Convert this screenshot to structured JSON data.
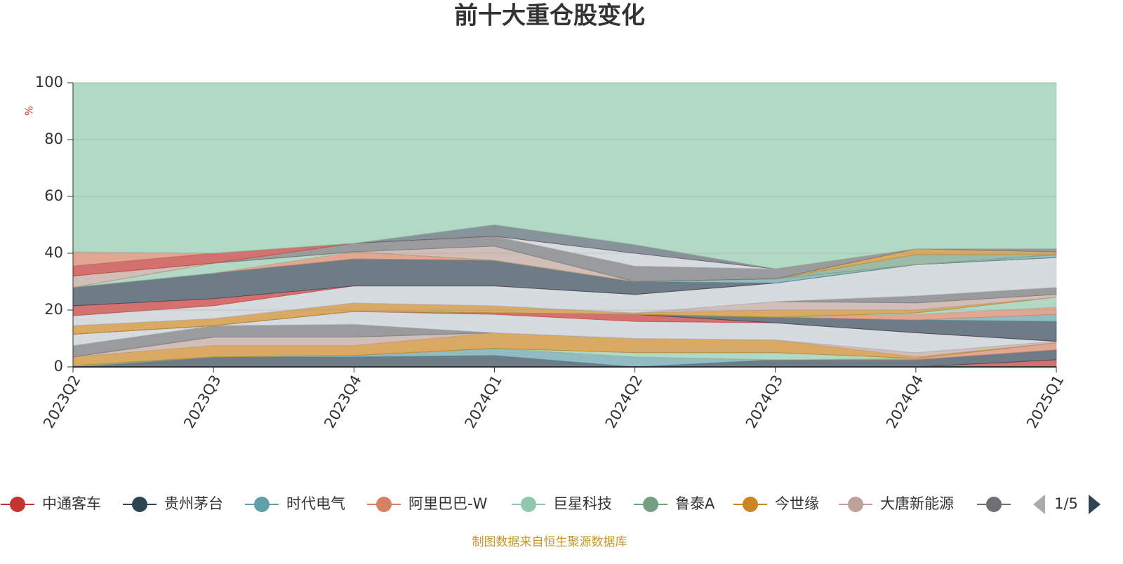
{
  "chart_data": {
    "type": "stacked_area",
    "title": "前十大重仓股变化",
    "y_axis_label": "%",
    "source": "制图数据来自恒生聚源数据库",
    "legend_page": "1/5",
    "categories": [
      "2023Q2",
      "2023Q3",
      "2023Q4",
      "2024Q1",
      "2024Q2",
      "2024Q3",
      "2024Q4",
      "2025Q1"
    ],
    "ylim": [
      0,
      100
    ],
    "yticks": [
      0,
      20,
      40,
      60,
      80,
      100
    ],
    "grid": true,
    "series": [
      {
        "name": "中通客车",
        "color": "#c23531",
        "values": [
          0,
          0,
          0,
          0,
          0,
          0,
          0,
          2.5
        ]
      },
      {
        "name": "贵州茅台",
        "color": "#2f4554",
        "values": [
          0,
          3.5,
          3.5,
          4,
          0,
          2.5,
          2.5,
          3.5
        ]
      },
      {
        "name": "时代电气",
        "color": "#61a0a8",
        "values": [
          0,
          0,
          0.5,
          2.5,
          3.5,
          0,
          0,
          0
        ]
      },
      {
        "name": "阿里巴巴-W",
        "color": "#d48265",
        "values": [
          0,
          0,
          0,
          0,
          0,
          0,
          0.5,
          2.5
        ]
      },
      {
        "name": "巨星科技",
        "color": "#91c7ae",
        "values": [
          0,
          0,
          0,
          0,
          1.5,
          2.5,
          0,
          0
        ]
      },
      {
        "name": "鲁泰A",
        "color": "#749f83",
        "values": [
          0.5,
          0,
          0,
          0,
          0,
          0,
          0,
          0
        ]
      },
      {
        "name": "今世缘",
        "color": "#ca8622",
        "values": [
          3,
          4,
          3.5,
          5.5,
          5,
          4.5,
          0.5,
          0
        ]
      },
      {
        "name": "大唐新能源",
        "color": "#bda29a",
        "values": [
          0,
          3,
          3,
          0,
          0,
          0,
          1.5,
          0.5
        ]
      },
      {
        "color": "#6e7074",
        "values": [
          4,
          4,
          4.5,
          0,
          0,
          0,
          0,
          0
        ]
      },
      {
        "color": "#c4ccd3",
        "values": [
          4,
          0,
          4.5,
          6.5,
          6,
          6,
          7,
          0
        ]
      },
      {
        "color": "#c23531",
        "values": [
          0,
          0,
          0,
          0.5,
          2.5,
          0,
          0,
          0
        ]
      },
      {
        "color": "#2f4554",
        "values": [
          0,
          0,
          0,
          0,
          0,
          2,
          4.5,
          7
        ]
      },
      {
        "color": "#61a0a8",
        "values": [
          0,
          0,
          0,
          0,
          0,
          0,
          0,
          2.5
        ]
      },
      {
        "color": "#d48265",
        "values": [
          0,
          0,
          0,
          0,
          0,
          0,
          2,
          2.5
        ]
      },
      {
        "color": "#91c7ae",
        "values": [
          0,
          0,
          0,
          0,
          0,
          0,
          0.5,
          3.5
        ]
      },
      {
        "color": "#749f83",
        "values": [
          0,
          0,
          0,
          0,
          0,
          0,
          0,
          0
        ]
      },
      {
        "color": "#ca8622",
        "values": [
          3,
          2.5,
          3,
          2.5,
          0.5,
          2.5,
          1,
          0
        ]
      },
      {
        "color": "#bda29a",
        "values": [
          0,
          0,
          0,
          0,
          0,
          3,
          2.5,
          1
        ]
      },
      {
        "color": "#6e7074",
        "values": [
          0,
          0,
          0,
          0,
          0,
          0,
          2.5,
          2.5
        ]
      },
      {
        "color": "#c4ccd3",
        "values": [
          3.5,
          4.5,
          6,
          7,
          6.5,
          6.5,
          11,
          10.5
        ]
      },
      {
        "color": "#c23531",
        "values": [
          3.5,
          2.5,
          0,
          0,
          0,
          0,
          0,
          0
        ]
      },
      {
        "color": "#2f4554",
        "values": [
          6.5,
          9,
          9.5,
          9,
          4.5,
          0,
          0,
          0
        ]
      },
      {
        "color": "#61a0a8",
        "values": [
          0,
          0,
          0,
          0,
          0,
          1.5,
          0,
          1
        ]
      },
      {
        "color": "#d48265",
        "values": [
          0,
          0,
          2.5,
          0,
          0,
          0,
          0,
          0
        ]
      },
      {
        "color": "#91c7ae",
        "values": [
          0,
          3.5,
          0,
          0,
          0,
          0,
          0,
          0
        ]
      },
      {
        "color": "#749f83",
        "values": [
          0,
          0,
          0,
          0,
          0,
          0,
          3.5,
          0
        ]
      },
      {
        "color": "#ca8622",
        "values": [
          0,
          0,
          0,
          0,
          0,
          0,
          2,
          1
        ]
      },
      {
        "color": "#bda29a",
        "values": [
          4,
          0,
          0,
          5,
          0,
          0,
          0,
          0
        ]
      },
      {
        "color": "#6e7074",
        "values": [
          0,
          0,
          3,
          3.5,
          5.5,
          3.5,
          0,
          1
        ]
      },
      {
        "color": "#c4ccd3",
        "values": [
          0,
          0,
          0,
          0,
          4.5,
          0,
          0,
          0
        ]
      },
      {
        "color": "#c23531",
        "values": [
          3.5,
          3.5,
          0,
          0,
          0,
          0,
          0,
          0
        ]
      },
      {
        "color": "#546570",
        "values": [
          0,
          0,
          0,
          4,
          3,
          0,
          0,
          0
        ]
      },
      {
        "color": "#d48265",
        "values": [
          5,
          0,
          0,
          0,
          0,
          0,
          0,
          0
        ]
      },
      {
        "color": "#91c7ae",
        "values": [
          59.5,
          60,
          56.5,
          50,
          57,
          65.5,
          58.5,
          58.5
        ]
      }
    ]
  }
}
